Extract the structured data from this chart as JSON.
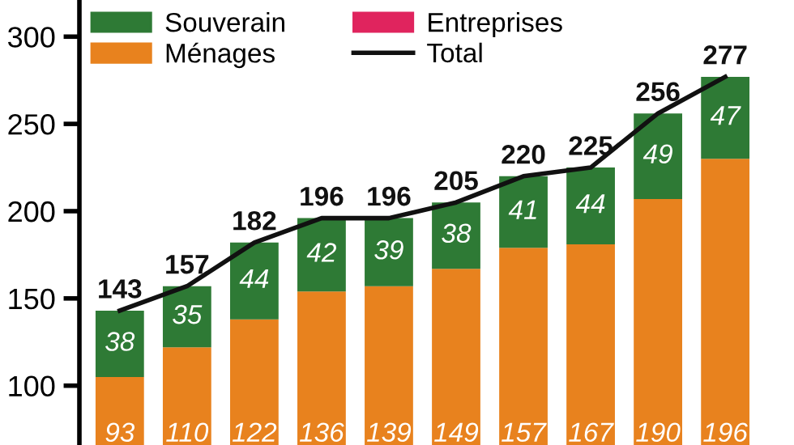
{
  "chart_data": {
    "type": "bar",
    "categories": [
      null,
      null,
      null,
      null,
      null,
      null,
      null,
      null,
      null,
      null
    ],
    "series": [
      {
        "name": "Entreprises",
        "color": "#e0245e",
        "values": [
          null,
          null,
          null,
          null,
          null,
          null,
          null,
          null,
          null,
          null
        ]
      },
      {
        "name": "Ménages",
        "color": "#e8821e",
        "values": [
          93,
          110,
          122,
          136,
          139,
          149,
          157,
          167,
          190,
          196
        ],
        "base": [
          12,
          12,
          16,
          18,
          18,
          18,
          22,
          14,
          17,
          34
        ],
        "value_labels": [
          "93",
          "110",
          "122",
          "136",
          "139",
          "149",
          "157",
          "167",
          "190",
          "196"
        ]
      },
      {
        "name": "Souverain",
        "color": "#2e7a35",
        "values": [
          38,
          35,
          44,
          42,
          39,
          38,
          41,
          44,
          49,
          47
        ],
        "base": [
          105,
          122,
          138,
          154,
          157,
          167,
          179,
          181,
          207,
          230
        ],
        "value_labels": [
          "38",
          "35",
          "44",
          "42",
          "39",
          "38",
          "41",
          "44",
          "49",
          "47"
        ]
      },
      {
        "name": "Total",
        "type": "line",
        "color": "#111111",
        "values": [
          143,
          157,
          182,
          196,
          196,
          205,
          220,
          225,
          256,
          277
        ],
        "value_labels": [
          "143",
          "157",
          "182",
          "196",
          "196",
          "205",
          "220",
          "225",
          "256",
          "277"
        ]
      }
    ],
    "ylim": [
      66,
      321
    ],
    "yticks": [
      100,
      150,
      200,
      250,
      300
    ],
    "tick_labels": "y",
    "grid": false,
    "legend": "top left"
  }
}
